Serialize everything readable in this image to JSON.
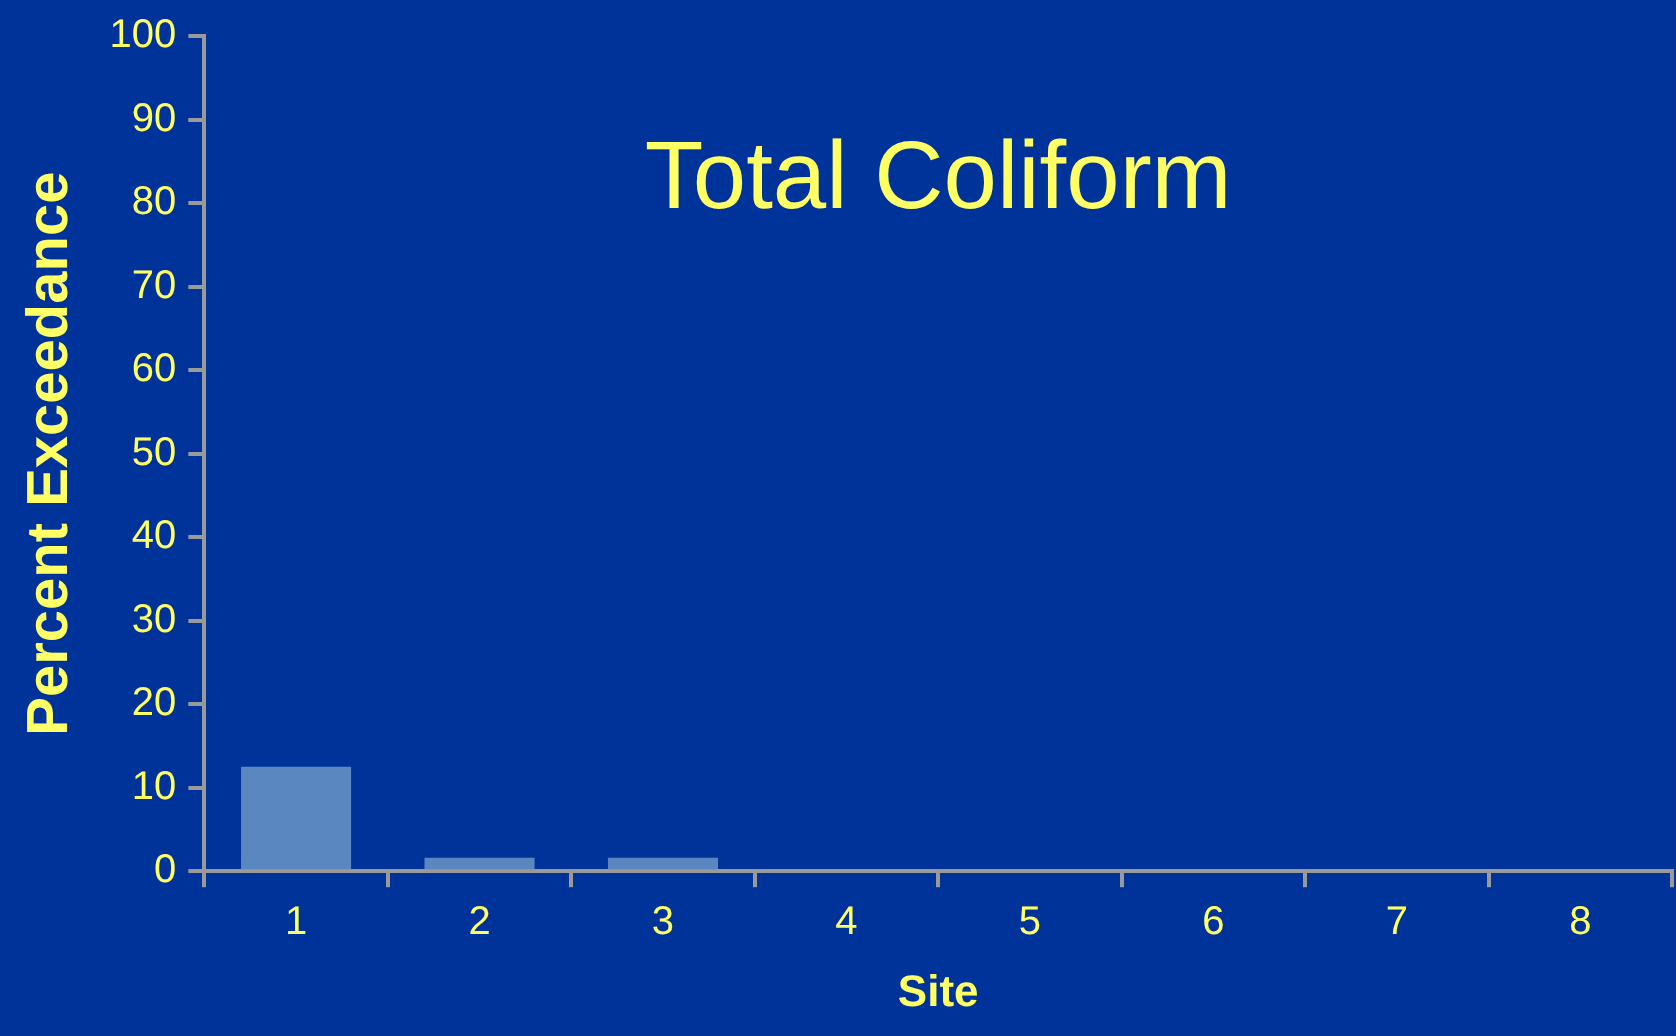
{
  "chart_data": {
    "type": "bar",
    "title": "Total Coliform",
    "xlabel": "Site",
    "ylabel": "Percent Exceedance",
    "categories": [
      "1",
      "2",
      "3",
      "4",
      "5",
      "6",
      "7",
      "8"
    ],
    "values": [
      12.5,
      1.6,
      1.6,
      0,
      0,
      0,
      0,
      0
    ],
    "color": "#5b87c0",
    "ylim": [
      0,
      100
    ],
    "yticks": [
      0,
      10,
      20,
      30,
      40,
      50,
      60,
      70,
      80,
      90,
      100
    ],
    "grid": false,
    "legend": false
  }
}
